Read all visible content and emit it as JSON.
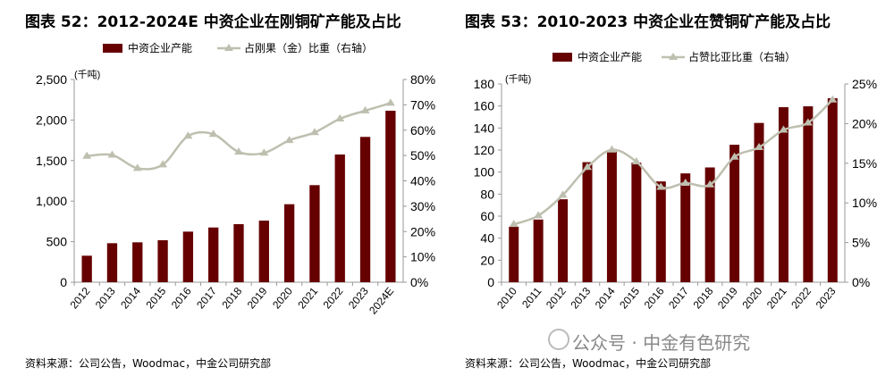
{
  "watermark": "公众号 · 中金有色研究",
  "chart_data": [
    {
      "type": "bar+line",
      "title": "图表 52：2012-2024E 中资企业在刚铜矿产能及占比",
      "unit_label": "(千吨)",
      "categories": [
        "2012",
        "2013",
        "2014",
        "2015",
        "2016",
        "2017",
        "2018",
        "2019",
        "2020",
        "2021",
        "2022",
        "2023",
        "2024E"
      ],
      "series": [
        {
          "name": "中资企业产能",
          "type": "bar",
          "axis": "left",
          "color": "#660000",
          "values": [
            327,
            481,
            492,
            518,
            624,
            675,
            716,
            760,
            962,
            1197,
            1575,
            1792,
            2115
          ]
        },
        {
          "name": "占刚果（金）比重（右轴）",
          "type": "line",
          "axis": "right",
          "color": "#bfbfb0",
          "values": [
            49.8,
            50.2,
            45.0,
            46.4,
            57.7,
            58.4,
            51.4,
            51.0,
            56.0,
            59.1,
            64.5,
            67.7,
            70.7
          ]
        }
      ],
      "ylim": [
        0,
        2500
      ],
      "yticks": [
        "0",
        "500",
        "1,000",
        "1,500",
        "2,000",
        "2,500"
      ],
      "y2lim": [
        0,
        80
      ],
      "y2ticks": [
        "0%",
        "10%",
        "20%",
        "30%",
        "40%",
        "50%",
        "60%",
        "70%",
        "80%"
      ],
      "legend": "top",
      "grid": false,
      "source": "资料来源：公司公告，Woodmac，中金公司研究部"
    },
    {
      "type": "bar+line",
      "title": "图表 53：2010-2023 中资企业在赞铜矿产能及占比",
      "unit_label": "(千吨)",
      "categories": [
        "2010",
        "2011",
        "2012",
        "2013",
        "2014",
        "2015",
        "2016",
        "2017",
        "2018",
        "2019",
        "2020",
        "2021",
        "2022",
        "2023"
      ],
      "series": [
        {
          "name": "中资企业产能",
          "type": "bar",
          "axis": "left",
          "color": "#660000",
          "values": [
            50.4,
            56.9,
            75.3,
            109,
            118.6,
            108.6,
            91.5,
            98.8,
            104.2,
            124.8,
            144.6,
            158.9,
            159.7,
            167
          ]
        },
        {
          "name": "占赞比亚比重（右轴）",
          "type": "line",
          "axis": "right",
          "color": "#bfbfb0",
          "values": [
            7.3,
            8.4,
            11.0,
            14.5,
            16.7,
            15.2,
            12.0,
            12.5,
            12.3,
            15.8,
            17.0,
            19.2,
            20.1,
            23.0
          ]
        }
      ],
      "ylim": [
        0,
        180
      ],
      "yticks": [
        "0",
        "20",
        "40",
        "60",
        "80",
        "100",
        "120",
        "140",
        "160",
        "180"
      ],
      "y2lim": [
        0,
        25
      ],
      "y2ticks": [
        "0%",
        "5%",
        "10%",
        "15%",
        "20%",
        "25%"
      ],
      "legend": "top",
      "grid": false,
      "source": "资料来源：公司公告，Woodmac，中金公司研究部"
    }
  ]
}
